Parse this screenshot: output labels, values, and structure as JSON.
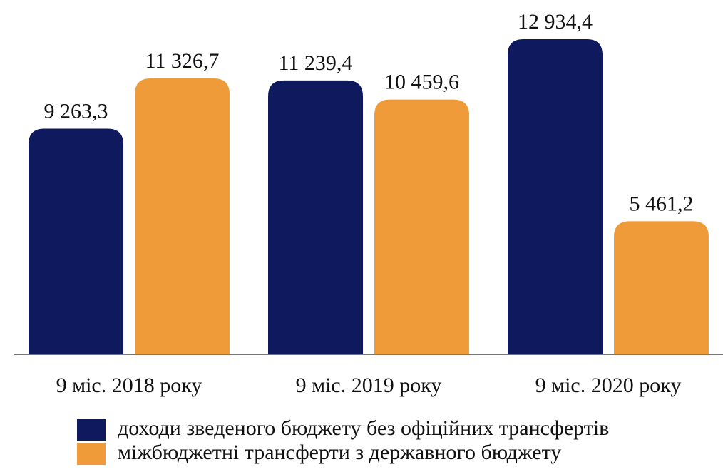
{
  "chart_data": {
    "type": "bar",
    "categories": [
      "9 міс. 2018 року",
      "9 міс. 2019 року",
      "9 міс. 2020 року"
    ],
    "series": [
      {
        "name": "доходи зведеного бюджету без офіційних трансфертів",
        "color": "#0f1a5e",
        "values": [
          9263.3,
          11239.4,
          12934.4
        ],
        "value_labels": [
          "9 263,3",
          "11 239,4",
          "12 934,4"
        ]
      },
      {
        "name": "міжбюджетні трансферти з державного бюджету",
        "color": "#f09b3a",
        "values": [
          11326.7,
          10459.6,
          5461.2
        ],
        "value_labels": [
          "11 326,7",
          "10 459,6",
          "5 461,2"
        ]
      }
    ]
  }
}
